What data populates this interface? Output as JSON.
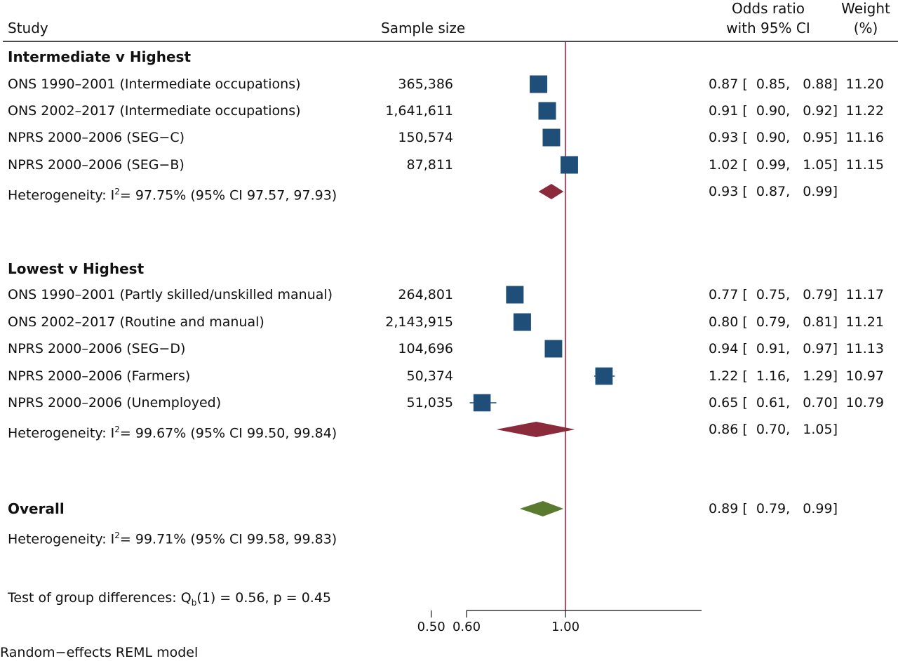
{
  "header": {
    "study": "Study",
    "sample_size": "Sample size",
    "or_line1": "Odds ratio",
    "or_line2": "with 95% CI",
    "weight_line1": "Weight",
    "weight_line2": "(%)"
  },
  "chart_data": {
    "type": "forest",
    "xscale": "log",
    "null_line": 1.0,
    "xticks": [
      0.5,
      0.6,
      1.0
    ],
    "xtick_labels": [
      "0.50",
      "0.60",
      "1.00"
    ],
    "colors": {
      "study_marker": "#1f4e79",
      "subgroup_diamond": "#8b2a3a",
      "overall_diamond": "#5a7a2f",
      "null_line": "#b01f3c"
    },
    "groups": [
      {
        "title": "Intermediate v Highest",
        "studies": [
          {
            "label": "ONS 1990–2001 (Intermediate occupations)",
            "n": "365,386",
            "or": 0.87,
            "lo": 0.85,
            "hi": 0.88,
            "or_text": "0.87 [  0.85,   0.88]",
            "weight": 11.2,
            "weight_text": "11.20"
          },
          {
            "label": "ONS 2002–2017 (Intermediate occupations)",
            "n": "1,641,611",
            "or": 0.91,
            "lo": 0.9,
            "hi": 0.92,
            "or_text": "0.91 [  0.90,   0.92]",
            "weight": 11.22,
            "weight_text": "11.22"
          },
          {
            "label": "NPRS 2000–2006 (SEG−C)",
            "n": "150,574",
            "or": 0.93,
            "lo": 0.9,
            "hi": 0.95,
            "or_text": "0.93 [  0.90,   0.95]",
            "weight": 11.16,
            "weight_text": "11.16"
          },
          {
            "label": "NPRS 2000–2006 (SEG−B)",
            "n": "87,811",
            "or": 1.02,
            "lo": 0.99,
            "hi": 1.05,
            "or_text": "1.02 [  0.99,   1.05]",
            "weight": 11.15,
            "weight_text": "11.15"
          }
        ],
        "pooled": {
          "label_prefix": "Heterogeneity: I",
          "label_sup": "2",
          "label_suffix": "= 97.75% (95% CI 97.57, 97.93)",
          "or": 0.93,
          "lo": 0.87,
          "hi": 0.99,
          "or_text": "0.93 [  0.87,   0.99]"
        }
      },
      {
        "title": "Lowest v Highest",
        "studies": [
          {
            "label": "ONS 1990–2001 (Partly skilled/unskilled manual)",
            "n": "264,801",
            "or": 0.77,
            "lo": 0.75,
            "hi": 0.79,
            "or_text": "0.77 [  0.75,   0.79]",
            "weight": 11.17,
            "weight_text": "11.17"
          },
          {
            "label": "ONS 2002–2017 (Routine and manual)",
            "n": "2,143,915",
            "or": 0.8,
            "lo": 0.79,
            "hi": 0.81,
            "or_text": "0.80 [  0.79,   0.81]",
            "weight": 11.21,
            "weight_text": "11.21"
          },
          {
            "label": "NPRS 2000–2006 (SEG−D)",
            "n": "104,696",
            "or": 0.94,
            "lo": 0.91,
            "hi": 0.97,
            "or_text": "0.94 [  0.91,   0.97]",
            "weight": 11.13,
            "weight_text": "11.13"
          },
          {
            "label": "NPRS 2000–2006 (Farmers)",
            "n": "50,374",
            "or": 1.22,
            "lo": 1.16,
            "hi": 1.29,
            "or_text": "1.22 [  1.16,   1.29]",
            "weight": 10.97,
            "weight_text": "10.97"
          },
          {
            "label": "NPRS 2000–2006 (Unemployed)",
            "n": "51,035",
            "or": 0.65,
            "lo": 0.61,
            "hi": 0.7,
            "or_text": "0.65 [  0.61,   0.70]",
            "weight": 10.79,
            "weight_text": "10.79"
          }
        ],
        "pooled": {
          "label_prefix": "Heterogeneity: I",
          "label_sup": "2",
          "label_suffix": "= 99.67% (95% CI 99.50, 99.84)",
          "or": 0.86,
          "lo": 0.7,
          "hi": 1.05,
          "or_text": "0.86 [  0.70,   1.05]"
        }
      }
    ],
    "overall": {
      "title": "Overall",
      "or": 0.89,
      "lo": 0.79,
      "hi": 0.99,
      "or_text": "0.89 [  0.79,   0.99]",
      "het_prefix": "Heterogeneity: I",
      "het_sup": "2",
      "het_suffix": "= 99.71% (95% CI 99.58, 99.83)"
    },
    "group_test": {
      "prefix": "Test of group differences: Q",
      "sub": "b",
      "suffix": "(1) = 0.56, p = 0.45"
    },
    "model_note": "Random−effects REML model"
  }
}
